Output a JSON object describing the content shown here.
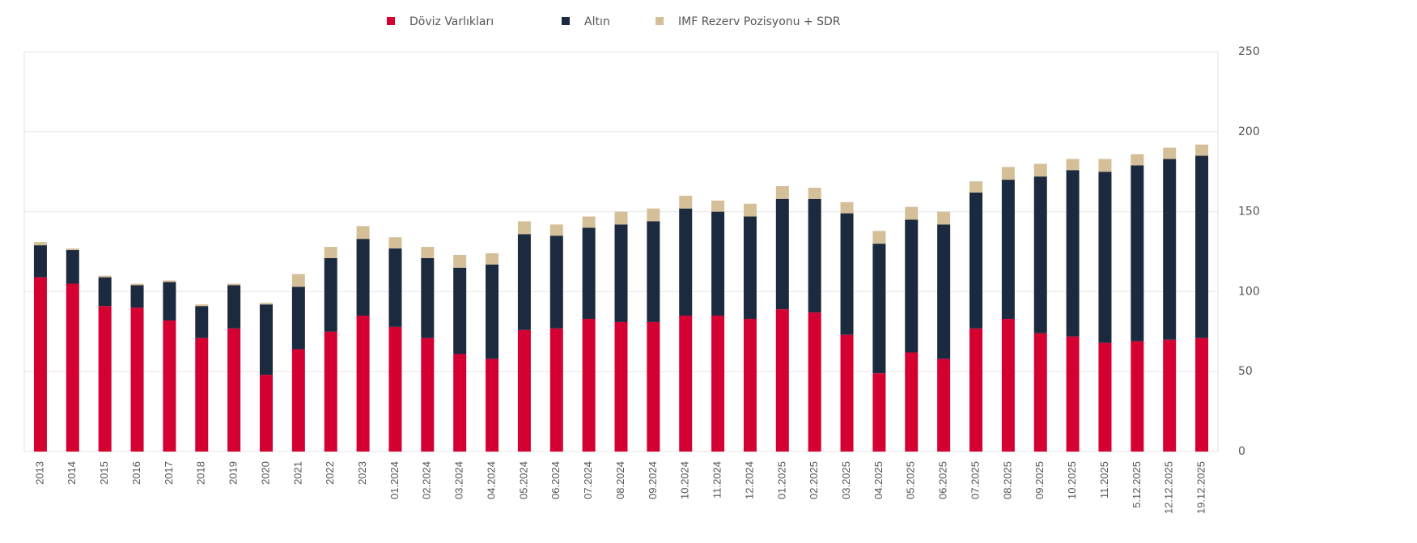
{
  "chart_data": {
    "type": "bar",
    "stacked": true,
    "categories": [
      "2013",
      "2014",
      "2015",
      "2016",
      "2017",
      "2018",
      "2019",
      "2020",
      "2021",
      "2022",
      "2023",
      "01.2024",
      "02.2024",
      "03.2024",
      "04.2024",
      "05.2024",
      "06.2024",
      "07.2024",
      "08.2024",
      "09.2024",
      "10.2024",
      "11.2024",
      "12.2024",
      "01.2025",
      "02.2025",
      "03.2025",
      "04.2025",
      "05.2025",
      "06.2025",
      "07.2025",
      "08.2025",
      "09.2025",
      "10.2025",
      "11.2025",
      "5.12.2025",
      "12.12.2025",
      "19.12.2025"
    ],
    "series": [
      {
        "name": "Döviz Varlıkları",
        "color": "#d40032",
        "values": [
          109,
          105,
          91,
          90,
          82,
          71,
          77,
          48,
          64,
          75,
          85,
          78,
          71,
          61,
          58,
          76,
          77,
          83,
          81,
          81,
          85,
          85,
          83,
          89,
          87,
          73,
          49,
          62,
          58,
          77,
          83,
          74,
          72,
          68,
          69,
          70,
          71
        ]
      },
      {
        "name": "Altın",
        "color": "#1b2a3f",
        "values": [
          20,
          21,
          18,
          14,
          24,
          20,
          27,
          44,
          39,
          46,
          48,
          49,
          50,
          54,
          59,
          60,
          58,
          57,
          61,
          63,
          67,
          65,
          64,
          69,
          71,
          76,
          81,
          83,
          84,
          85,
          87,
          98,
          104,
          107,
          110,
          113,
          114
        ]
      },
      {
        "name": "IMF Rezerv Pozisyonu + SDR",
        "color": "#d4bf98",
        "values": [
          2,
          1,
          1,
          1,
          1,
          1,
          1,
          1,
          8,
          7,
          8,
          7,
          7,
          8,
          7,
          8,
          7,
          7,
          8,
          8,
          8,
          7,
          8,
          8,
          7,
          7,
          8,
          8,
          8,
          7,
          8,
          8,
          7,
          8,
          7,
          7,
          7
        ]
      }
    ],
    "ylim": [
      0,
      250
    ],
    "yticks": [
      0,
      50,
      100,
      150,
      200,
      250
    ],
    "grid": true,
    "y_axis_side": "right",
    "legend": "top"
  }
}
